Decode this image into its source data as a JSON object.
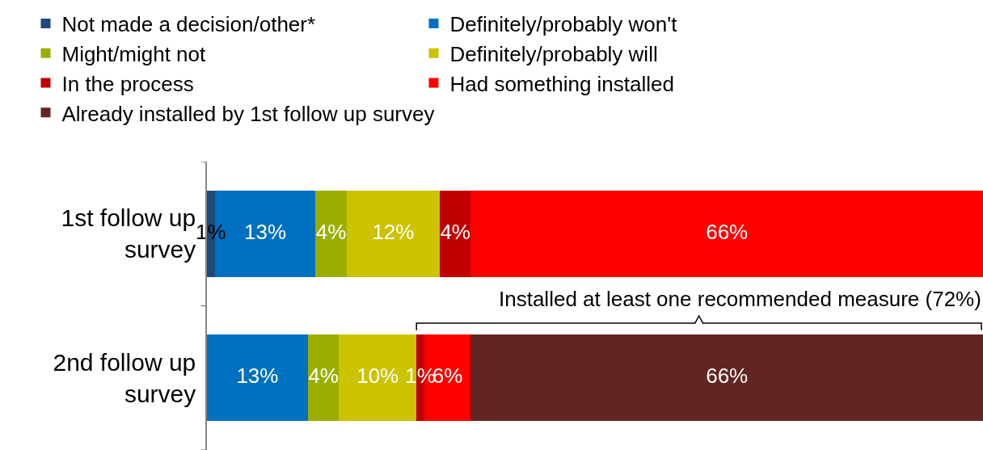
{
  "chart_data": {
    "type": "bar",
    "orientation": "horizontal",
    "stacked": true,
    "legend": "top",
    "tick_labels": "y",
    "categories": [
      "1st follow up survey",
      "2nd follow up survey"
    ],
    "series": [
      {
        "name": "Not made a decision/other*",
        "color": "#1f497d",
        "values": [
          1,
          null
        ],
        "value_labels": [
          "1%",
          null
        ]
      },
      {
        "name": "Definitely/probably won't",
        "color": "#0070c0",
        "values": [
          13,
          13
        ],
        "value_labels": [
          "13%",
          "13%"
        ]
      },
      {
        "name": "Might/might not",
        "color": "#9bae00",
        "values": [
          4,
          4
        ],
        "value_labels": [
          "4%",
          "4%"
        ]
      },
      {
        "name": "Definitely/probably will",
        "color": "#ccc200",
        "values": [
          12,
          10
        ],
        "value_labels": [
          "12%",
          "10%"
        ]
      },
      {
        "name": "In the process",
        "color": "#c00000",
        "values": [
          4,
          1
        ],
        "value_labels": [
          "4%",
          "1%"
        ]
      },
      {
        "name": "Had something installed",
        "color": "#ff0000",
        "values": [
          66,
          6
        ],
        "value_labels": [
          "66%",
          "6%"
        ]
      },
      {
        "name": "Already installed by 1st follow up survey",
        "color": "#632523",
        "values": [
          null,
          66
        ],
        "value_labels": [
          null,
          "66%"
        ]
      }
    ],
    "annotations": [
      "Installed at least one recommended measure (72%)"
    ]
  }
}
